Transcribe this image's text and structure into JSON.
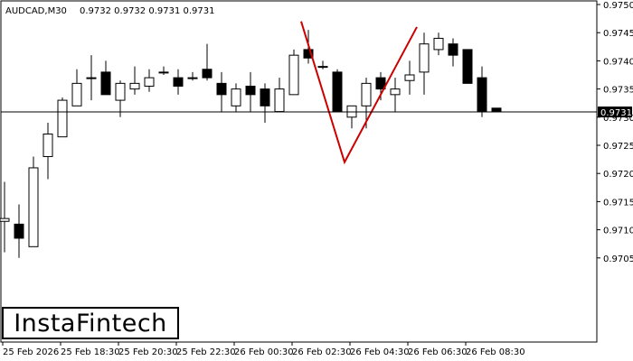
{
  "header": {
    "symbol": "AUDCAD,M30",
    "ohlc": "0.9732 0.9732 0.9731 0.9731"
  },
  "logo": {
    "text": "InstaFintech"
  },
  "chart_data": {
    "type": "candlestick",
    "ylim": [
      0.97,
      0.975
    ],
    "y_ticks": [
      "0.9705",
      "0.9710",
      "0.9715",
      "0.9720",
      "0.9725",
      "0.9730",
      "0.9735",
      "0.9740",
      "0.9745",
      "0.9750"
    ],
    "current_price": "0.9731",
    "x_ticks": [
      "25 Feb 2026",
      "25 Feb 18:30",
      "25 Feb 20:30",
      "25 Feb 22:30",
      "26 Feb 00:30",
      "26 Feb 02:30",
      "26 Feb 04:30",
      "26 Feb 06:30",
      "26 Feb 08:30"
    ],
    "colors": {
      "bull_body": "#ffffff",
      "bear_body": "#000000",
      "pattern": "#cc0000",
      "line": "#000000"
    },
    "candles": [
      {
        "o": 0.97115,
        "h": 0.97185,
        "l": 0.9706,
        "c": 0.9712
      },
      {
        "o": 0.9711,
        "h": 0.97145,
        "l": 0.9705,
        "c": 0.97085
      },
      {
        "o": 0.9707,
        "h": 0.9723,
        "l": 0.9707,
        "c": 0.9721
      },
      {
        "o": 0.9723,
        "h": 0.9729,
        "l": 0.9719,
        "c": 0.9727
      },
      {
        "o": 0.97265,
        "h": 0.97335,
        "l": 0.97265,
        "c": 0.9733
      },
      {
        "o": 0.9732,
        "h": 0.97385,
        "l": 0.9732,
        "c": 0.9736
      },
      {
        "o": 0.9737,
        "h": 0.9741,
        "l": 0.9733,
        "c": 0.9737
      },
      {
        "o": 0.9738,
        "h": 0.974,
        "l": 0.9734,
        "c": 0.9734
      },
      {
        "o": 0.9733,
        "h": 0.97365,
        "l": 0.973,
        "c": 0.9736
      },
      {
        "o": 0.9735,
        "h": 0.9739,
        "l": 0.9734,
        "c": 0.9736
      },
      {
        "o": 0.97355,
        "h": 0.97385,
        "l": 0.97345,
        "c": 0.9737
      },
      {
        "o": 0.9738,
        "h": 0.9739,
        "l": 0.97375,
        "c": 0.9738
      },
      {
        "o": 0.9737,
        "h": 0.97385,
        "l": 0.9734,
        "c": 0.97355
      },
      {
        "o": 0.9737,
        "h": 0.9738,
        "l": 0.97365,
        "c": 0.9737
      },
      {
        "o": 0.97385,
        "h": 0.9743,
        "l": 0.97365,
        "c": 0.9737
      },
      {
        "o": 0.9736,
        "h": 0.9738,
        "l": 0.9731,
        "c": 0.9734
      },
      {
        "o": 0.9732,
        "h": 0.9736,
        "l": 0.9731,
        "c": 0.9735
      },
      {
        "o": 0.97355,
        "h": 0.9738,
        "l": 0.9731,
        "c": 0.9734
      },
      {
        "o": 0.9735,
        "h": 0.9736,
        "l": 0.9729,
        "c": 0.9732
      },
      {
        "o": 0.9731,
        "h": 0.9737,
        "l": 0.9731,
        "c": 0.9735
      },
      {
        "o": 0.9734,
        "h": 0.9742,
        "l": 0.9734,
        "c": 0.9741
      },
      {
        "o": 0.9742,
        "h": 0.97455,
        "l": 0.97395,
        "c": 0.97405
      },
      {
        "o": 0.9739,
        "h": 0.974,
        "l": 0.97385,
        "c": 0.9739
      },
      {
        "o": 0.9738,
        "h": 0.97385,
        "l": 0.9731,
        "c": 0.9731
      },
      {
        "o": 0.973,
        "h": 0.9732,
        "l": 0.9728,
        "c": 0.9732
      },
      {
        "o": 0.9732,
        "h": 0.9737,
        "l": 0.9728,
        "c": 0.9736
      },
      {
        "o": 0.9737,
        "h": 0.9738,
        "l": 0.9733,
        "c": 0.9735
      },
      {
        "o": 0.9734,
        "h": 0.9737,
        "l": 0.9731,
        "c": 0.9735
      },
      {
        "o": 0.97365,
        "h": 0.974,
        "l": 0.9734,
        "c": 0.97375
      },
      {
        "o": 0.9738,
        "h": 0.9745,
        "l": 0.9734,
        "c": 0.9743
      },
      {
        "o": 0.9742,
        "h": 0.9745,
        "l": 0.9741,
        "c": 0.9744
      },
      {
        "o": 0.9743,
        "h": 0.9744,
        "l": 0.9739,
        "c": 0.9741
      },
      {
        "o": 0.9742,
        "h": 0.9742,
        "l": 0.9736,
        "c": 0.9736
      },
      {
        "o": 0.9737,
        "h": 0.9739,
        "l": 0.973,
        "c": 0.9731
      },
      {
        "o": 0.97316,
        "h": 0.97316,
        "l": 0.9731,
        "c": 0.9731
      }
    ],
    "pattern_line": [
      {
        "candle": 20.5,
        "price": 0.9747
      },
      {
        "candle": 23.5,
        "price": 0.9722
      },
      {
        "candle": 28.5,
        "price": 0.9746
      }
    ]
  }
}
